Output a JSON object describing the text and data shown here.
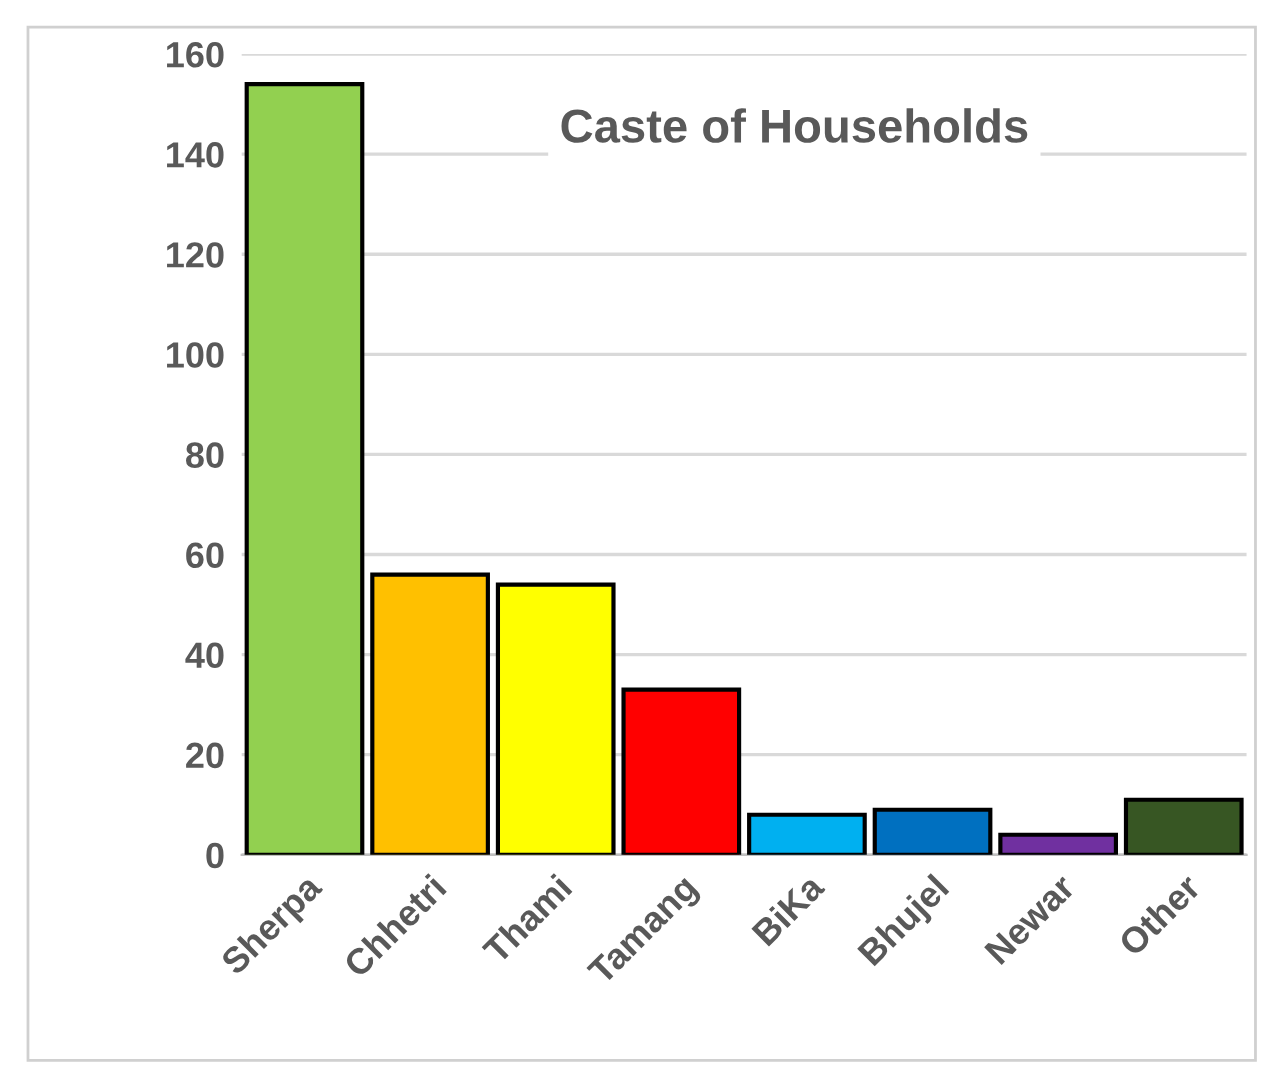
{
  "chart_data": {
    "type": "bar",
    "title": "Caste of Households",
    "categories": [
      "Sherpa",
      "Chhetri",
      "Thami",
      "Tamang",
      "BiKa",
      "Bhujel",
      "Newar",
      "Other"
    ],
    "values": [
      154,
      56,
      54,
      33,
      8,
      9,
      4,
      11
    ],
    "colors": [
      "#92d050",
      "#ffc000",
      "#ffff00",
      "#ff0000",
      "#00b0f0",
      "#0070c0",
      "#7030a0",
      "#375623"
    ],
    "ylim": [
      0,
      160
    ],
    "yticks": [
      0,
      20,
      40,
      60,
      80,
      100,
      120,
      140,
      160
    ],
    "grid": "y"
  }
}
